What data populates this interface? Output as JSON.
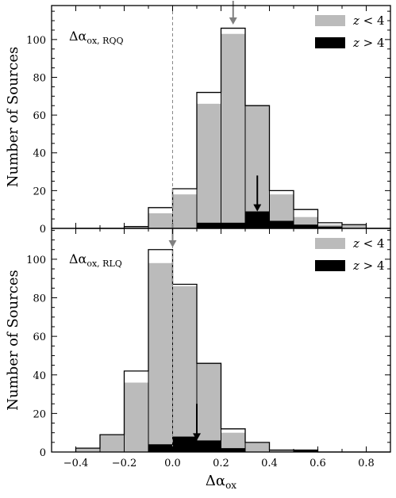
{
  "chart_data": [
    {
      "type": "bar",
      "panel_label_main": "Δα",
      "panel_label_sub": "ox, RQQ",
      "ylabel": "Number of Sources",
      "xlabel": "",
      "xlim": [
        -0.5,
        0.9
      ],
      "ylim": [
        0,
        118
      ],
      "xticks": [
        -0.4,
        -0.2,
        0.0,
        0.2,
        0.4,
        0.6,
        0.8
      ],
      "yticks": [
        0,
        20,
        40,
        60,
        80,
        100
      ],
      "xtick_labels": [
        "−0.4",
        "−0.2",
        "0.0",
        "0.2",
        "0.4",
        "0.6",
        "0.8"
      ],
      "ytick_labels": [
        "0",
        "20",
        "40",
        "60",
        "80",
        "100"
      ],
      "bin_edges": [
        -0.4,
        -0.3,
        -0.2,
        -0.1,
        0.0,
        0.1,
        0.2,
        0.3,
        0.4,
        0.5,
        0.6,
        0.7,
        0.8,
        0.9
      ],
      "series": [
        {
          "name": "z < 4",
          "role": "low_z",
          "color": "#bbbbbb",
          "values": [
            0,
            0,
            1,
            8,
            18,
            66,
            103,
            65,
            18,
            6,
            2,
            2,
            0
          ]
        },
        {
          "name": "z > 4",
          "role": "high_z",
          "color": "#000000",
          "values": [
            0,
            0,
            0,
            0,
            0,
            3,
            3,
            9,
            4,
            2,
            1,
            0,
            0
          ]
        },
        {
          "name": "",
          "role": "total",
          "color": "#000000",
          "values": [
            0,
            0,
            1,
            11,
            21,
            72,
            106,
            65,
            20,
            10,
            3,
            2,
            0
          ]
        }
      ],
      "vertical_reference_line": 0.0,
      "arrows": [
        {
          "x": 0.25,
          "color": "#808080",
          "position": "top"
        },
        {
          "x": 0.35,
          "y_from": 28,
          "y_to": 9,
          "color": "#000000"
        }
      ],
      "legend": {
        "position": "top-right",
        "labels_main": [
          "z",
          "z"
        ],
        "labels_op": [
          "<",
          ">"
        ],
        "labels_val": [
          "4",
          "4"
        ]
      }
    },
    {
      "type": "bar",
      "panel_label_main": "Δα",
      "panel_label_sub": "ox, RLQ",
      "ylabel": "Number of Sources",
      "xlabel": "Δα",
      "xlabel_sub": "ox",
      "xlim": [
        -0.5,
        0.9
      ],
      "ylim": [
        0,
        116
      ],
      "xticks": [
        -0.4,
        -0.2,
        0.0,
        0.2,
        0.4,
        0.6,
        0.8
      ],
      "yticks": [
        0,
        20,
        40,
        60,
        80,
        100
      ],
      "xtick_labels": [
        "−0.4",
        "−0.2",
        "0.0",
        "0.2",
        "0.4",
        "0.6",
        "0.8"
      ],
      "ytick_labels": [
        "0",
        "20",
        "40",
        "60",
        "80",
        "100"
      ],
      "bin_edges": [
        -0.4,
        -0.3,
        -0.2,
        -0.1,
        0.0,
        0.1,
        0.2,
        0.3,
        0.4,
        0.5,
        0.6,
        0.7,
        0.8,
        0.9
      ],
      "series": [
        {
          "name": "z < 4",
          "role": "low_z",
          "color": "#bbbbbb",
          "values": [
            2,
            9,
            36,
            98,
            86,
            46,
            10,
            5,
            1,
            0,
            0,
            0,
            0
          ]
        },
        {
          "name": "z > 4",
          "role": "high_z",
          "color": "#000000",
          "values": [
            0,
            0,
            0,
            4,
            8,
            6,
            2,
            0,
            0,
            1,
            0,
            0,
            0
          ]
        },
        {
          "name": "",
          "role": "total",
          "color": "#000000",
          "values": [
            2,
            9,
            42,
            105,
            87,
            46,
            12,
            5,
            1,
            1,
            0,
            0,
            0
          ]
        }
      ],
      "vertical_reference_line": 0.0,
      "arrows": [
        {
          "x": 0.0,
          "color": "#808080",
          "position": "top"
        },
        {
          "x": 0.1,
          "y_from": 25,
          "y_to": 6,
          "color": "#000000"
        }
      ],
      "legend": {
        "position": "top-right",
        "labels_main": [
          "z",
          "z"
        ],
        "labels_op": [
          "<",
          ">"
        ],
        "labels_val": [
          "4",
          "4"
        ]
      }
    }
  ]
}
